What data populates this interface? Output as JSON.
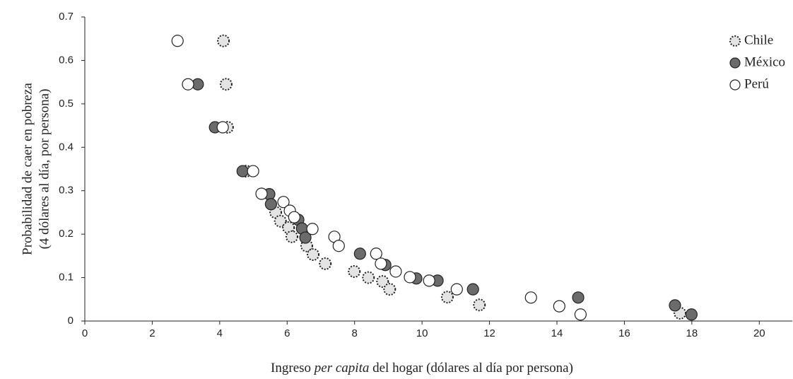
{
  "chart_data": {
    "type": "scatter",
    "xlabel": [
      "Ingreso ",
      "per capita",
      " del hogar (dólares al día por persona)"
    ],
    "ylabel": [
      "Probabilidad de caer en pobreza",
      "(4 dólares al día, por persona)"
    ],
    "xlim": [
      0,
      21
    ],
    "xticks": [
      0,
      2,
      4,
      6,
      8,
      10,
      12,
      14,
      16,
      18,
      20
    ],
    "ylim": [
      0,
      0.7
    ],
    "yticks": [
      0,
      0.1,
      0.2,
      0.3,
      0.4,
      0.5,
      0.6,
      0.7
    ],
    "legend": "upper right",
    "series": [
      {
        "name": "Chile",
        "color": "#e4e4e4",
        "edge": "dotted",
        "x": [
          4.11,
          4.19,
          4.23,
          4.78,
          5.66,
          5.8,
          6.04,
          6.14,
          6.58,
          6.77,
          7.13,
          7.99,
          8.41,
          8.83,
          9.04,
          10.75,
          11.7,
          17.65
        ],
        "values": [
          0.645,
          0.545,
          0.446,
          0.345,
          0.25,
          0.23,
          0.215,
          0.194,
          0.173,
          0.153,
          0.132,
          0.114,
          0.1,
          0.091,
          0.073,
          0.055,
          0.037,
          0.018
        ]
      },
      {
        "name": "México",
        "color": "#6b6b6b",
        "edge": "solid",
        "x": [
          3.35,
          3.86,
          4.68,
          5.47,
          5.52,
          6.33,
          6.44,
          6.54,
          8.16,
          8.91,
          9.83,
          10.46,
          11.51,
          14.63,
          17.5,
          17.99
        ],
        "values": [
          0.545,
          0.446,
          0.345,
          0.292,
          0.269,
          0.233,
          0.213,
          0.192,
          0.155,
          0.129,
          0.098,
          0.093,
          0.073,
          0.054,
          0.036,
          0.015
        ]
      },
      {
        "name": "Perú",
        "color": "#ffffff",
        "edge": "solid",
        "x": [
          2.75,
          3.06,
          4.09,
          4.99,
          5.24,
          5.89,
          6.08,
          6.21,
          6.75,
          7.4,
          7.53,
          8.64,
          8.78,
          9.22,
          9.64,
          10.21,
          11.03,
          13.23,
          14.07,
          14.7
        ],
        "values": [
          0.645,
          0.545,
          0.446,
          0.345,
          0.293,
          0.274,
          0.254,
          0.239,
          0.212,
          0.194,
          0.173,
          0.155,
          0.132,
          0.114,
          0.101,
          0.093,
          0.073,
          0.054,
          0.034,
          0.015
        ]
      }
    ]
  }
}
